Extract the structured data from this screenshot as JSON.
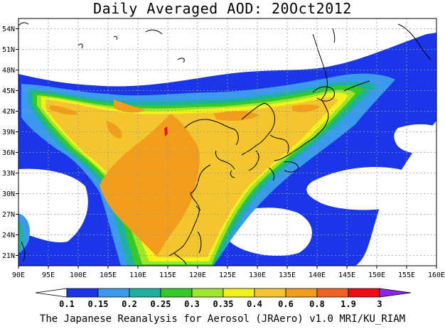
{
  "title": "Daily Averaged AOD: 20Oct2012",
  "footer": "The Japanese Reanalysis for Aerosol (JRAero) v1.0 MRI/KU_RIAM",
  "map": {
    "lon_range": [
      90,
      160
    ],
    "lat_range": [
      19.5,
      55.5
    ],
    "lon_ticks": [
      "90E",
      "95E",
      "100E",
      "105E",
      "110E",
      "115E",
      "120E",
      "125E",
      "130E",
      "135E",
      "140E",
      "145E",
      "150E",
      "155E",
      "160E"
    ],
    "lat_ticks": [
      "54N",
      "51N",
      "48N",
      "45N",
      "42N",
      "39N",
      "36N",
      "33N",
      "30N",
      "27N",
      "24N",
      "21N"
    ],
    "grid": true,
    "grid_style": "dotted"
  },
  "colorbar": {
    "labels": [
      "0.1",
      "0.15",
      "0.2",
      "0.25",
      "0.3",
      "0.35",
      "0.4",
      "0.6",
      "0.8",
      "1.9",
      "3"
    ],
    "colors": [
      "#ffffff",
      "#1b36e8",
      "#3b9aee",
      "#1fb19f",
      "#35c926",
      "#9fe629",
      "#f4f21d",
      "#f3c630",
      "#f39d1d",
      "#f2611f",
      "#ee0d14",
      "#8b24ef"
    ]
  }
}
